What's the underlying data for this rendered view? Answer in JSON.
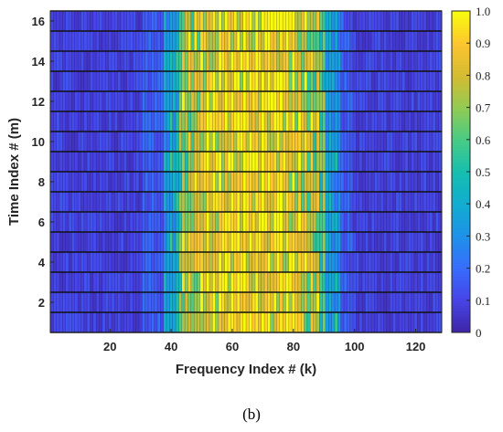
{
  "caption": "(b)",
  "chart_data": {
    "type": "heatmap",
    "title": "",
    "xlabel": "Frequency Index # (k)",
    "ylabel": "Time Index # (m)",
    "x_range": [
      1,
      128
    ],
    "y_range": [
      1,
      16
    ],
    "xlim": [
      0.5,
      128.5
    ],
    "ylim": [
      0.5,
      16.5
    ],
    "x_ticks": [
      20,
      40,
      60,
      80,
      100,
      120
    ],
    "y_ticks": [
      2,
      4,
      6,
      8,
      10,
      12,
      14,
      16
    ],
    "colorbar": {
      "colormap": "parula",
      "range": [
        0,
        1
      ],
      "ticks": [
        "0",
        "0.1",
        "0.2",
        "0.3",
        "0.4",
        "0.5",
        "0.6",
        "0.7",
        "0.8",
        "0.9",
        "1.0"
      ]
    },
    "grid": "black row separators between time indices",
    "notes": "Magnitude is low (~0.05-0.15) outside frequency index ~38-95 and high/variable (0.3-1.0) inside that band, for all 16 time indices."
  }
}
